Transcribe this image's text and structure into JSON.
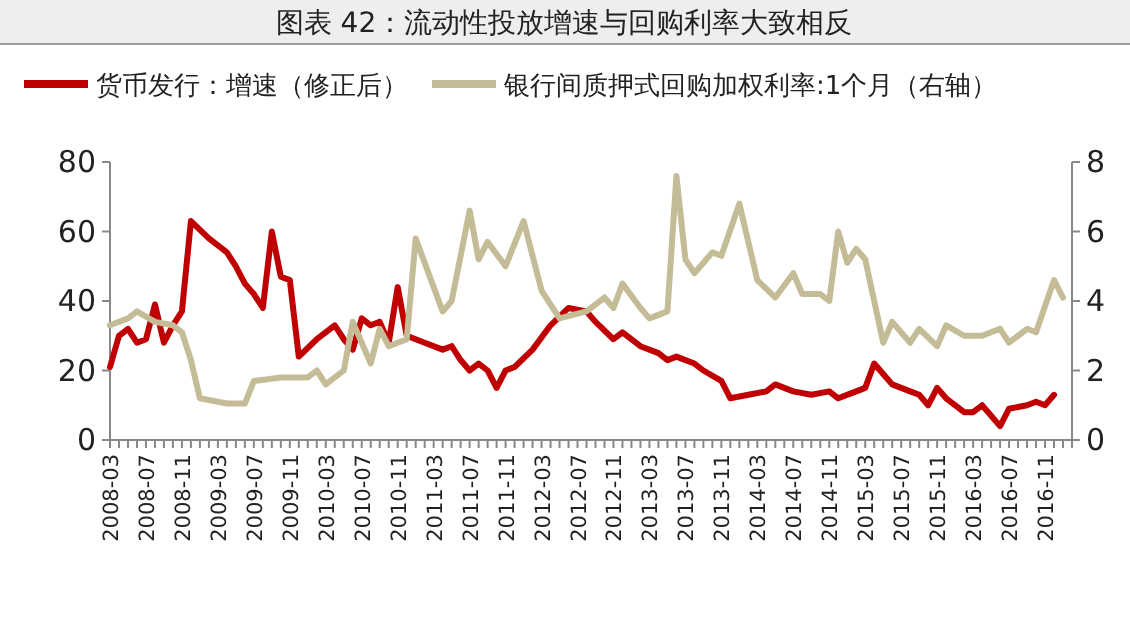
{
  "chart_data": {
    "type": "line",
    "title": "图表 42：流动性投放增速与回购利率大致相反",
    "legend": "top",
    "line_style": "solid",
    "marker": "none",
    "grid": false,
    "xlim": [
      "2008-03",
      "2017-02"
    ],
    "xticks": [
      "2008-03",
      "2008-07",
      "2008-11",
      "2009-03",
      "2009-07",
      "2009-11",
      "2010-03",
      "2010-07",
      "2010-11",
      "2011-03",
      "2011-07",
      "2011-11",
      "2012-03",
      "2012-07",
      "2012-11",
      "2013-03",
      "2013-07",
      "2013-11",
      "2014-03",
      "2014-07",
      "2014-11",
      "2015-03",
      "2015-07",
      "2015-11",
      "2016-03",
      "2016-07",
      "2016-11"
    ],
    "ylim": [
      0,
      80
    ],
    "yticks": [
      0,
      20,
      40,
      60,
      80
    ],
    "y2lim": [
      0,
      8
    ],
    "y2ticks": [
      0,
      2,
      4,
      6,
      8
    ],
    "series": [
      {
        "name": "货币发行：增速（修正后）",
        "color": "#c00000",
        "x": [
          "2008-03",
          "2008-04",
          "2008-05",
          "2008-06",
          "2008-07",
          "2008-08",
          "2008-09",
          "2008-10",
          "2008-11",
          "2008-12",
          "2009-02",
          "2009-04",
          "2009-05",
          "2009-06",
          "2009-07",
          "2009-08",
          "2009-09",
          "2009-10",
          "2009-11",
          "2009-12",
          "2010-02",
          "2010-04",
          "2010-05",
          "2010-06",
          "2010-07",
          "2010-08",
          "2010-09",
          "2010-10",
          "2010-11",
          "2010-12",
          "2011-02",
          "2011-04",
          "2011-05",
          "2011-06",
          "2011-07",
          "2011-08",
          "2011-09",
          "2011-10",
          "2011-11",
          "2011-12",
          "2012-02",
          "2012-04",
          "2012-06",
          "2012-08",
          "2012-09",
          "2012-11",
          "2012-12",
          "2013-02",
          "2013-04",
          "2013-05",
          "2013-06",
          "2013-08",
          "2013-09",
          "2013-11",
          "2013-12",
          "2014-02",
          "2014-04",
          "2014-05",
          "2014-07",
          "2014-09",
          "2014-11",
          "2014-12",
          "2015-02",
          "2015-03",
          "2015-04",
          "2015-05",
          "2015-06",
          "2015-08",
          "2015-09",
          "2015-10",
          "2015-11",
          "2015-12",
          "2016-02",
          "2016-03",
          "2016-04",
          "2016-06",
          "2016-07",
          "2016-09",
          "2016-10",
          "2016-11",
          "2016-12"
        ],
        "values": [
          21,
          30,
          32,
          28,
          29,
          39,
          28,
          33,
          37,
          63,
          58,
          54,
          50,
          45,
          42,
          38,
          60,
          47,
          46,
          24,
          29,
          33,
          29,
          26,
          35,
          33,
          34,
          28,
          44,
          30,
          28,
          26,
          27,
          23,
          20,
          22,
          20,
          15,
          20,
          21,
          26,
          33,
          38,
          37,
          34,
          29,
          31,
          27,
          25,
          23,
          24,
          22,
          20,
          17,
          12,
          13,
          14,
          16,
          14,
          13,
          14,
          12,
          14,
          15,
          22,
          19,
          16,
          14,
          13,
          10,
          15,
          12,
          8,
          8,
          10,
          4,
          9,
          10,
          11,
          10,
          13
        ]
      },
      {
        "name": "银行间质押式回购加权利率:1个月（右轴）",
        "color": "#c4bc96",
        "axis": "y2",
        "x": [
          "2008-03",
          "2008-05",
          "2008-06",
          "2008-08",
          "2008-10",
          "2008-11",
          "2008-12",
          "2009-01",
          "2009-04",
          "2009-06",
          "2009-07",
          "2009-10",
          "2010-01",
          "2010-02",
          "2010-03",
          "2010-05",
          "2010-06",
          "2010-08",
          "2010-09",
          "2010-10",
          "2010-12",
          "2011-01",
          "2011-04",
          "2011-05",
          "2011-07",
          "2011-08",
          "2011-09",
          "2011-11",
          "2012-01",
          "2012-03",
          "2012-05",
          "2012-08",
          "2012-10",
          "2012-11",
          "2012-12",
          "2013-02",
          "2013-03",
          "2013-05",
          "2013-06",
          "2013-07",
          "2013-08",
          "2013-10",
          "2013-11",
          "2014-01",
          "2014-03",
          "2014-05",
          "2014-07",
          "2014-08",
          "2014-10",
          "2014-11",
          "2014-12",
          "2015-01",
          "2015-02",
          "2015-03",
          "2015-05",
          "2015-06",
          "2015-08",
          "2015-09",
          "2015-11",
          "2015-12",
          "2016-02",
          "2016-04",
          "2016-06",
          "2016-07",
          "2016-09",
          "2016-10",
          "2016-12",
          "2017-01"
        ],
        "values": [
          3.3,
          3.5,
          3.7,
          3.4,
          3.3,
          3.1,
          2.3,
          1.2,
          1.05,
          1.05,
          1.7,
          1.8,
          1.8,
          2.0,
          1.6,
          2.0,
          3.4,
          2.2,
          3.2,
          2.7,
          2.9,
          5.8,
          3.7,
          4.0,
          6.6,
          5.2,
          5.7,
          5.0,
          6.3,
          4.3,
          3.5,
          3.7,
          4.1,
          3.8,
          4.5,
          3.8,
          3.5,
          3.7,
          7.6,
          5.2,
          4.8,
          5.4,
          5.3,
          6.8,
          4.6,
          4.1,
          4.8,
          4.2,
          4.2,
          4.0,
          6.0,
          5.1,
          5.5,
          5.2,
          2.8,
          3.4,
          2.8,
          3.2,
          2.7,
          3.3,
          3.0,
          3.0,
          3.2,
          2.8,
          3.2,
          3.1,
          4.6,
          4.1
        ]
      }
    ]
  }
}
